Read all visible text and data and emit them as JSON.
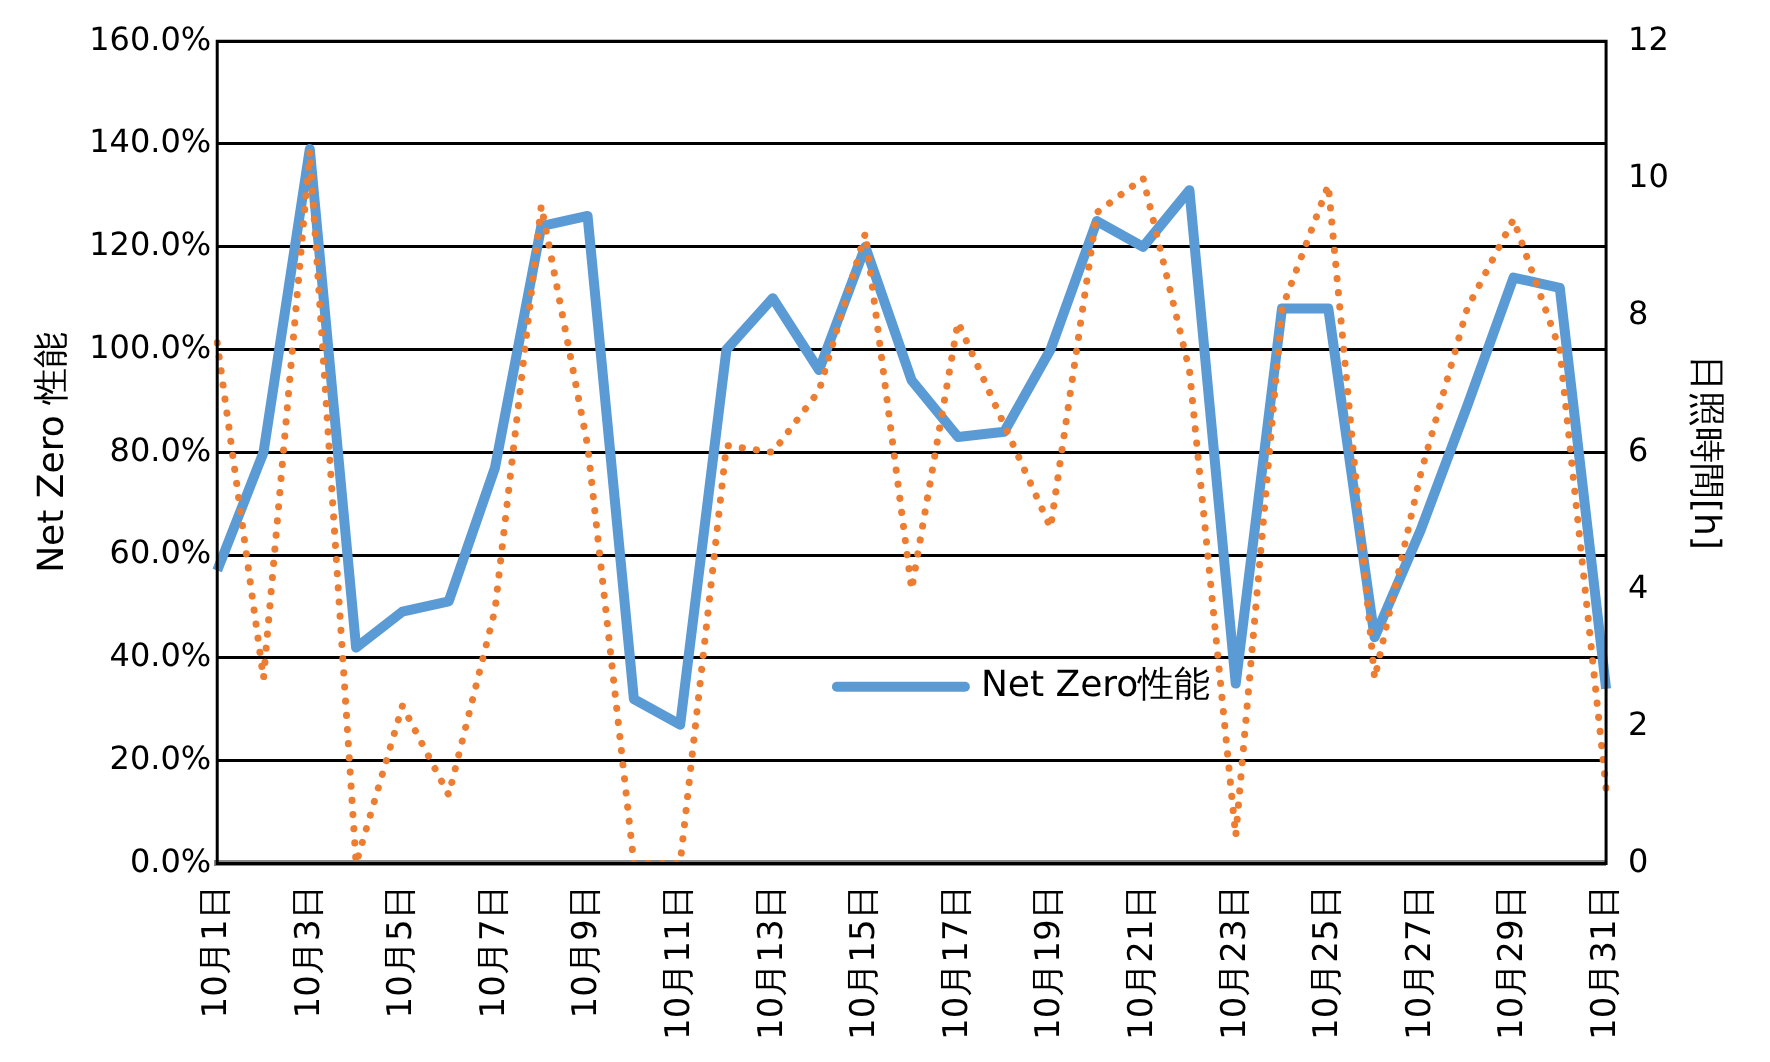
{
  "chart_data": {
    "type": "line",
    "ylabel": "Net Zero 性能",
    "y2label": "日照時間[h]",
    "categories": [
      "10月1日",
      null,
      "10月3日",
      null,
      "10月5日",
      null,
      "10月7日",
      null,
      "10月9日",
      null,
      "10月11日",
      null,
      "10月13日",
      null,
      "10月15日",
      null,
      "10月17日",
      null,
      "10月19日",
      null,
      "10月21日",
      null,
      "10月23日",
      null,
      "10月25日",
      null,
      "10月27日",
      null,
      "10月29日",
      null,
      "10月31日"
    ],
    "series": [
      {
        "name": "Net Zero性能",
        "color": "#5b9bd5",
        "line_style": "solid",
        "values": [
          57,
          80,
          139,
          42,
          49,
          51,
          77,
          124,
          126,
          32,
          27,
          100,
          110,
          96,
          120,
          94,
          83,
          84,
          100,
          125,
          120,
          131,
          35,
          108,
          108,
          44,
          65,
          89,
          114,
          112,
          34
        ]
      },
      {
        "color": "#ed7d31",
        "line_style": "dotted",
        "axis": "y2",
        "values": [
          7.6,
          2.7,
          10.4,
          0,
          2.3,
          1.0,
          3.7,
          9.6,
          6.1,
          0,
          0,
          6.1,
          6.0,
          6.9,
          9.2,
          4.0,
          7.9,
          6.4,
          4.9,
          9.5,
          10.0,
          7.2,
          0.4,
          8.1,
          9.9,
          2.7,
          5.7,
          8.1,
          9.4,
          7.5,
          1.1
        ]
      }
    ],
    "ylim": [
      0,
      160
    ],
    "yticks": [
      {
        "value": 0,
        "label": "0.0%"
      },
      {
        "value": 20,
        "label": "20.0%"
      },
      {
        "value": 40,
        "label": "40.0%"
      },
      {
        "value": 60,
        "label": "60.0%"
      },
      {
        "value": 80,
        "label": "80.0%"
      },
      {
        "value": 100,
        "label": "100.0%"
      },
      {
        "value": 120,
        "label": "120.0%"
      },
      {
        "value": 140,
        "label": "140.0%"
      },
      {
        "value": 160,
        "label": "160.0%"
      }
    ],
    "y2lim": [
      0,
      12
    ],
    "y2ticks": [
      0,
      2,
      4,
      6,
      8,
      10,
      12
    ],
    "grid": "y",
    "legend": "bottom",
    "marker": "none"
  }
}
